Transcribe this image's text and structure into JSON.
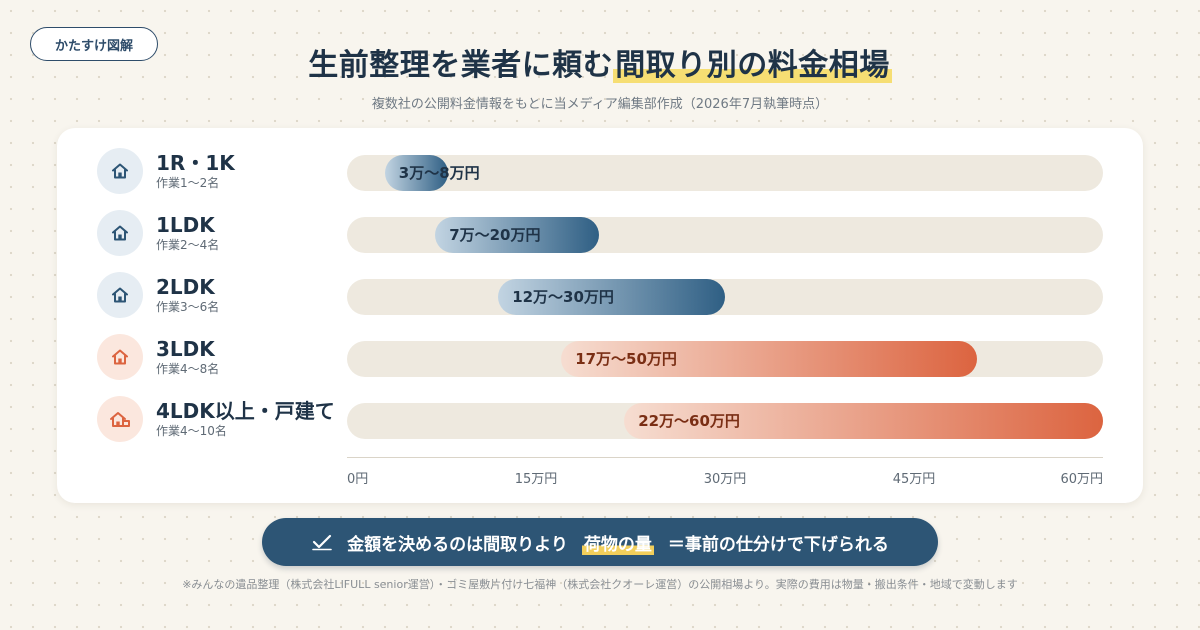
{
  "brand": "かたすけ図解",
  "title": {
    "prefix": "生前整理を業者に頼む",
    "highlight": "間取り別の料金相場"
  },
  "subtitle": "複数社の公開料金情報をもとに当メディア編集部作成（2026年7月執筆時点）",
  "colors": {
    "navy": "#2d5575",
    "blue_start": "#c2d4e2",
    "blue_end": "#2f5f84",
    "orange_start": "#f6ddd1",
    "orange_end": "#dc6440",
    "track": "#eee9df",
    "highlight": "#f6de73"
  },
  "chart_data": {
    "type": "range-bar",
    "unit": "万円",
    "xlim": [
      0,
      60
    ],
    "xticks": [
      "0円",
      "15万円",
      "30万円",
      "45万円",
      "60万円"
    ],
    "grid": false,
    "rows": [
      {
        "name": "1R・1K",
        "staff": "作業1〜2名",
        "min": 3,
        "max": 8,
        "label": "3万〜8万円",
        "color": "blue",
        "icon": "house-icon"
      },
      {
        "name": "1LDK",
        "staff": "作業2〜4名",
        "min": 7,
        "max": 20,
        "label": "7万〜20万円",
        "color": "blue",
        "icon": "house-icon"
      },
      {
        "name": "2LDK",
        "staff": "作業3〜6名",
        "min": 12,
        "max": 30,
        "label": "12万〜30万円",
        "color": "blue",
        "icon": "house-icon"
      },
      {
        "name": "3LDK",
        "staff": "作業4〜8名",
        "min": 17,
        "max": 50,
        "label": "17万〜50万円",
        "color": "orange",
        "icon": "house-icon"
      },
      {
        "name": "4LDK以上・戸建て",
        "staff": "作業4〜10名",
        "min": 22,
        "max": 60,
        "label": "22万〜60万円",
        "color": "orange",
        "icon": "big-house-icon"
      }
    ]
  },
  "cta": {
    "icon": "check-icon",
    "before": "金額を決めるのは間取りより",
    "highlight": "荷物の量",
    "after": "＝事前の仕分けで下げられる"
  },
  "footnote": "※みんなの遺品整理（株式会社LIFULL senior運営）・ゴミ屋敷片付け七福神（株式会社クオーレ運営）の公開相場より。実際の費用は物量・搬出条件・地域で変動します"
}
